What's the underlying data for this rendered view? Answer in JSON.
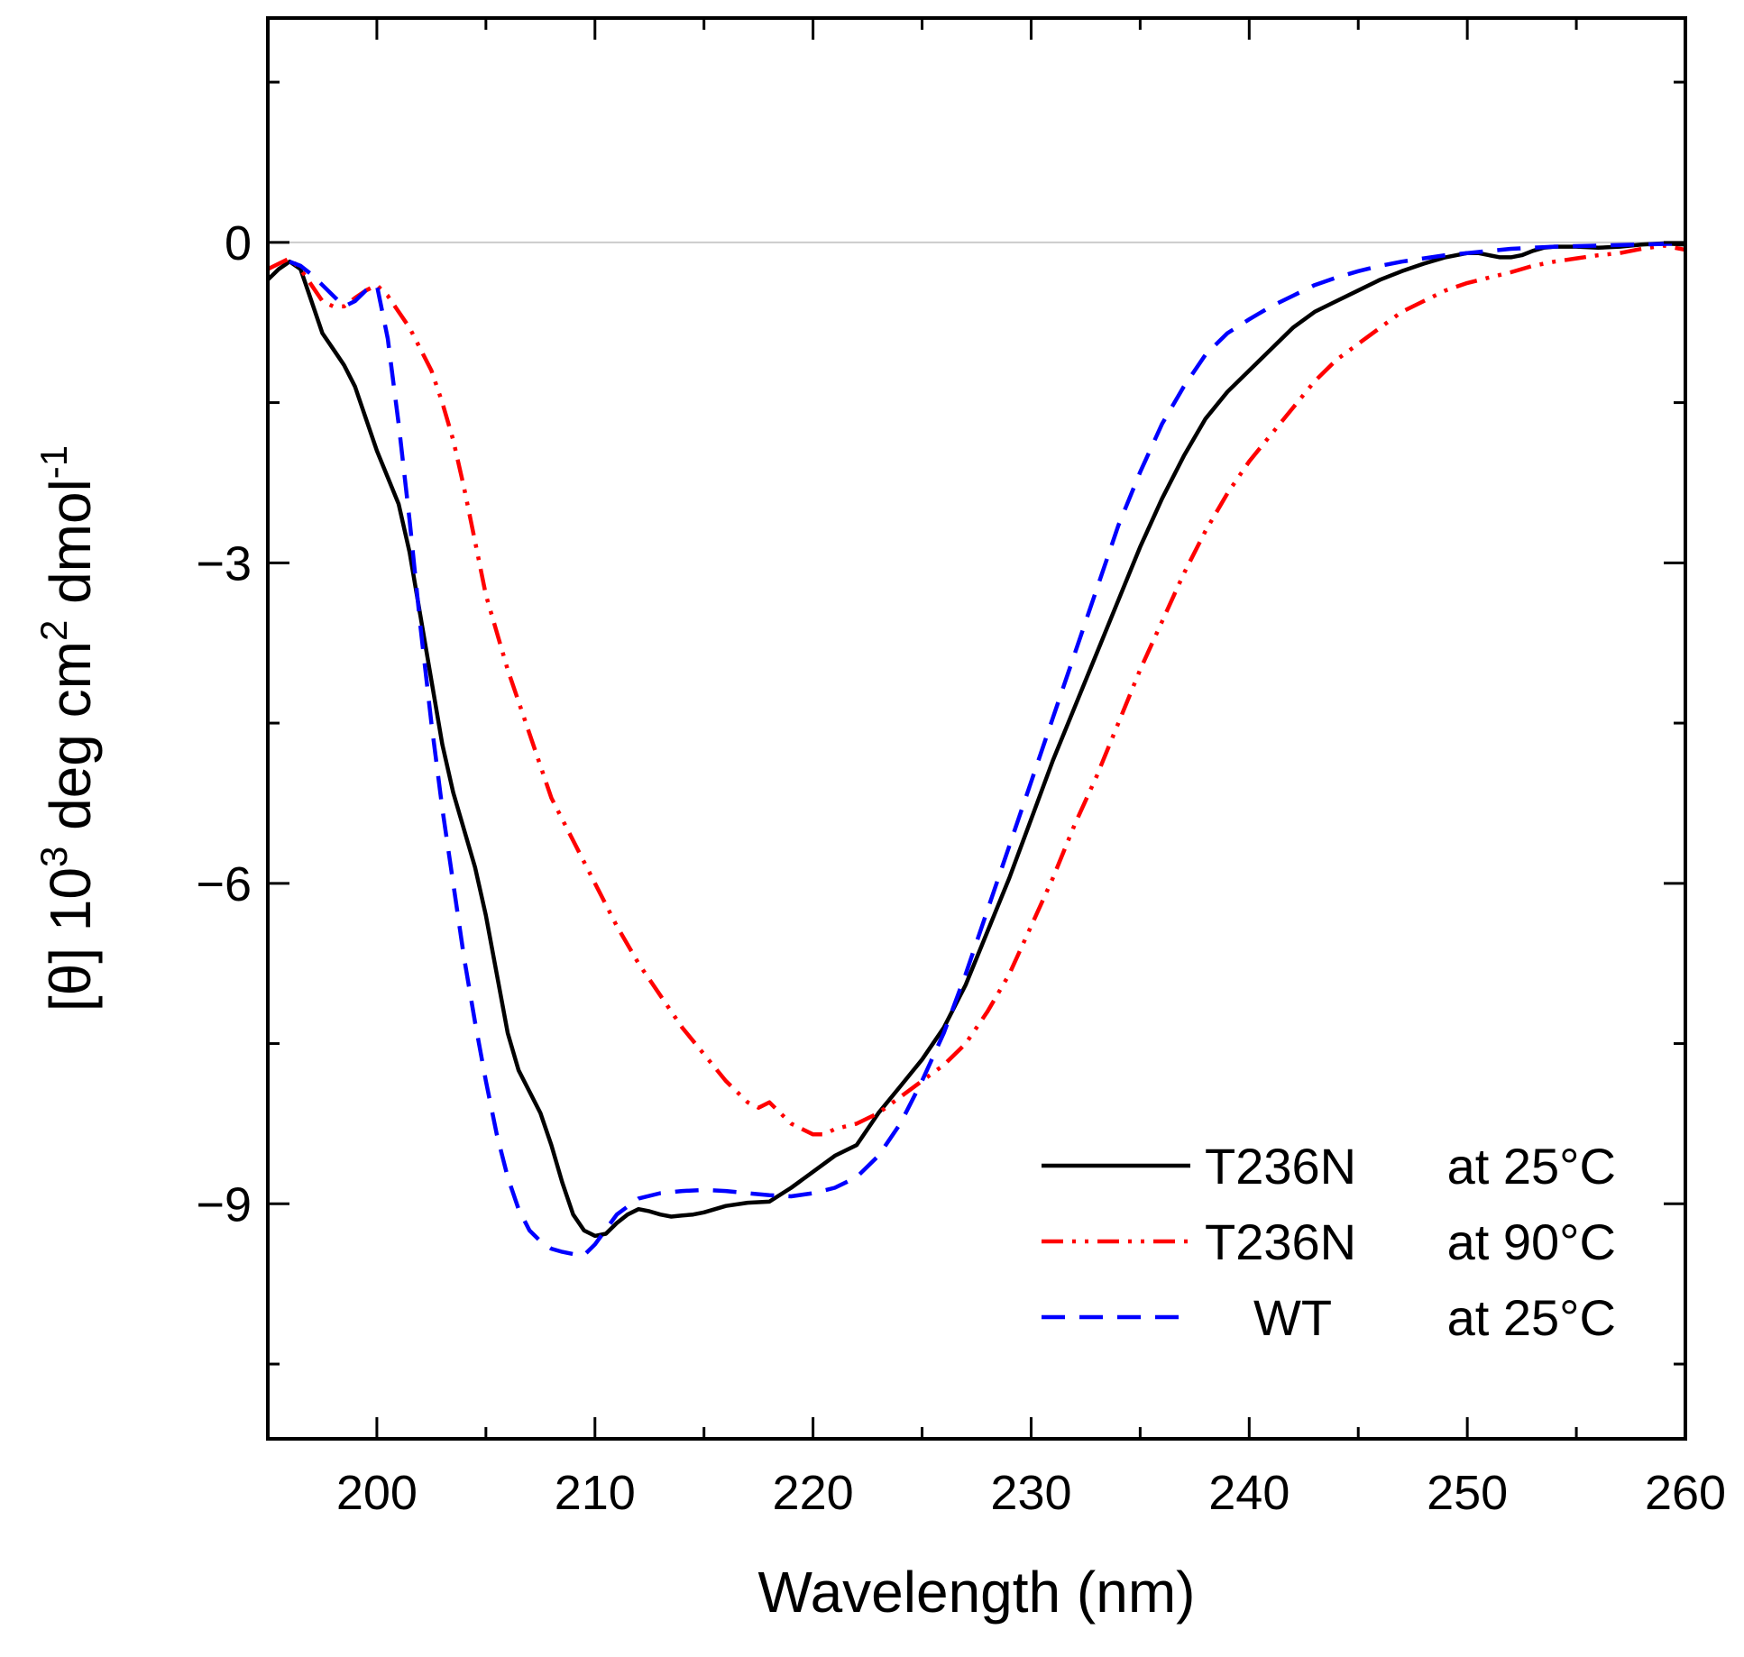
{
  "chart_data": {
    "type": "line",
    "title": "",
    "xlabel": "Wavelength (nm)",
    "ylabel_parts": {
      "pre": "[θ] 10",
      "sup1": "3",
      "mid": " deg cm",
      "sup2": "2",
      "post": " dmol",
      "sup3": "-1"
    },
    "xlim": [
      195,
      260
    ],
    "ylim": [
      -11.2,
      2.1
    ],
    "xticks": [
      200,
      210,
      220,
      230,
      240,
      250,
      260
    ],
    "xtick_labels": [
      "200",
      "210",
      "220",
      "230",
      "240",
      "250",
      "260"
    ],
    "yticks": [
      0,
      -3,
      -6,
      -9
    ],
    "ytick_labels": [
      "0",
      "−3",
      "−6",
      "−9"
    ],
    "grid": false,
    "zero_line": true,
    "legend_placement": "bottom-right",
    "series": [
      {
        "name": "T236N at 25°C",
        "legend_label": {
          "left": "T236N",
          "right": "at 25°C"
        },
        "color": "#000000",
        "style": "solid",
        "x": [
          195,
          195.5,
          196,
          196.5,
          197,
          197.5,
          198,
          198.5,
          199,
          199.5,
          200,
          200.5,
          201,
          201.5,
          202,
          202.5,
          203,
          203.5,
          204,
          204.5,
          205,
          205.5,
          206,
          206.5,
          207,
          207.5,
          208,
          208.5,
          209,
          209.5,
          210,
          210.5,
          211,
          211.5,
          212,
          212.5,
          213,
          213.5,
          214,
          214.5,
          215,
          216,
          217,
          218,
          219,
          220,
          221,
          222,
          223,
          224,
          225,
          226,
          227,
          228,
          229,
          230,
          231,
          232,
          233,
          234,
          235,
          236,
          237,
          238,
          239,
          240,
          241,
          242,
          243,
          244,
          245,
          246,
          247,
          248,
          249,
          250,
          250.5,
          251,
          251.5,
          252,
          252.5,
          253,
          253.5,
          254,
          254.5,
          255,
          256,
          257,
          258,
          259,
          260
        ],
        "y": [
          -0.35,
          -0.25,
          -0.18,
          -0.25,
          -0.55,
          -0.85,
          -1.0,
          -1.15,
          -1.35,
          -1.65,
          -1.95,
          -2.2,
          -2.45,
          -2.9,
          -3.5,
          -4.1,
          -4.7,
          -5.15,
          -5.5,
          -5.85,
          -6.3,
          -6.85,
          -7.4,
          -7.75,
          -7.95,
          -8.15,
          -8.45,
          -8.8,
          -9.1,
          -9.25,
          -9.3,
          -9.28,
          -9.18,
          -9.1,
          -9.05,
          -9.07,
          -9.1,
          -9.12,
          -9.11,
          -9.1,
          -9.08,
          -9.02,
          -8.99,
          -8.98,
          -8.85,
          -8.7,
          -8.55,
          -8.45,
          -8.15,
          -7.9,
          -7.65,
          -7.35,
          -6.95,
          -6.45,
          -5.95,
          -5.4,
          -4.85,
          -4.35,
          -3.85,
          -3.35,
          -2.85,
          -2.4,
          -2.0,
          -1.65,
          -1.4,
          -1.2,
          -1.0,
          -0.8,
          -0.65,
          -0.55,
          -0.45,
          -0.35,
          -0.27,
          -0.2,
          -0.14,
          -0.1,
          -0.1,
          -0.12,
          -0.14,
          -0.14,
          -0.12,
          -0.08,
          -0.05,
          -0.04,
          -0.04,
          -0.04,
          -0.05,
          -0.04,
          -0.02,
          -0.01,
          -0.02
        ]
      },
      {
        "name": "T236N at 90°C",
        "legend_label": {
          "left": "T236N",
          "right": "at 90°C"
        },
        "color": "#ff0000",
        "style": "dash-dot-dot",
        "x": [
          195,
          195.5,
          196,
          196.5,
          197,
          197.5,
          198,
          198.5,
          199,
          199.5,
          200,
          200.5,
          201,
          201.5,
          202,
          202.5,
          203,
          203.5,
          204,
          204.5,
          205,
          206,
          207,
          208,
          209,
          210,
          211,
          212,
          213,
          214,
          215,
          216,
          217,
          217.5,
          218,
          218.5,
          219,
          219.5,
          220,
          220.5,
          221,
          222,
          223,
          224,
          225,
          226,
          227,
          228,
          229,
          230,
          231,
          232,
          233,
          234,
          235,
          236,
          237,
          238,
          239,
          240,
          241,
          242,
          243,
          244,
          245,
          246,
          247,
          248,
          249,
          250,
          251,
          252,
          253,
          254,
          255,
          256,
          257,
          258,
          259,
          260
        ],
        "y": [
          -0.25,
          -0.2,
          -0.15,
          -0.25,
          -0.4,
          -0.55,
          -0.6,
          -0.6,
          -0.52,
          -0.45,
          -0.4,
          -0.5,
          -0.65,
          -0.8,
          -1.0,
          -1.2,
          -1.5,
          -1.85,
          -2.3,
          -2.8,
          -3.3,
          -4.0,
          -4.6,
          -5.2,
          -5.6,
          -6.0,
          -6.4,
          -6.75,
          -7.05,
          -7.35,
          -7.6,
          -7.85,
          -8.05,
          -8.1,
          -8.05,
          -8.15,
          -8.25,
          -8.3,
          -8.35,
          -8.35,
          -8.3,
          -8.25,
          -8.15,
          -8.0,
          -7.85,
          -7.7,
          -7.5,
          -7.2,
          -6.85,
          -6.4,
          -5.95,
          -5.45,
          -5.0,
          -4.5,
          -4.0,
          -3.55,
          -3.1,
          -2.7,
          -2.35,
          -2.05,
          -1.8,
          -1.55,
          -1.3,
          -1.1,
          -0.95,
          -0.8,
          -0.65,
          -0.55,
          -0.45,
          -0.38,
          -0.33,
          -0.28,
          -0.22,
          -0.18,
          -0.15,
          -0.12,
          -0.1,
          -0.06,
          -0.03,
          -0.07
        ]
      },
      {
        "name": "WT at 25°C",
        "legend_label": {
          "left": "WT",
          "right": "at 25°C"
        },
        "color": "#0000ff",
        "style": "dashed",
        "x": [
          196,
          196.5,
          197,
          197.5,
          198,
          198.5,
          199,
          199.5,
          200,
          200.5,
          201,
          201.5,
          202,
          202.5,
          203,
          203.5,
          204,
          204.5,
          205,
          205.5,
          206,
          206.5,
          207,
          207.5,
          208,
          208.5,
          209,
          209.5,
          210,
          211,
          212,
          213,
          214,
          215,
          216,
          217,
          218,
          219,
          220,
          221,
          222,
          223,
          224,
          225,
          226,
          227,
          228,
          229,
          230,
          231,
          232,
          233,
          234,
          235,
          236,
          237,
          238,
          239,
          240,
          241,
          242,
          243,
          244,
          245,
          246,
          247,
          248,
          249,
          250,
          252,
          254,
          256,
          258,
          260
        ],
        "y": [
          -0.18,
          -0.22,
          -0.3,
          -0.4,
          -0.5,
          -0.6,
          -0.55,
          -0.45,
          -0.4,
          -0.9,
          -1.7,
          -2.6,
          -3.6,
          -4.5,
          -5.3,
          -6.0,
          -6.7,
          -7.3,
          -7.85,
          -8.35,
          -8.75,
          -9.05,
          -9.25,
          -9.35,
          -9.42,
          -9.45,
          -9.47,
          -9.48,
          -9.38,
          -9.1,
          -8.95,
          -8.9,
          -8.88,
          -8.87,
          -8.88,
          -8.9,
          -8.92,
          -8.93,
          -8.9,
          -8.85,
          -8.75,
          -8.55,
          -8.25,
          -7.85,
          -7.4,
          -6.85,
          -6.25,
          -5.65,
          -5.05,
          -4.45,
          -3.85,
          -3.25,
          -2.65,
          -2.15,
          -1.7,
          -1.35,
          -1.05,
          -0.85,
          -0.72,
          -0.6,
          -0.5,
          -0.4,
          -0.33,
          -0.27,
          -0.22,
          -0.18,
          -0.15,
          -0.12,
          -0.1,
          -0.06,
          -0.04,
          -0.03,
          -0.02,
          -0.01
        ]
      }
    ]
  }
}
